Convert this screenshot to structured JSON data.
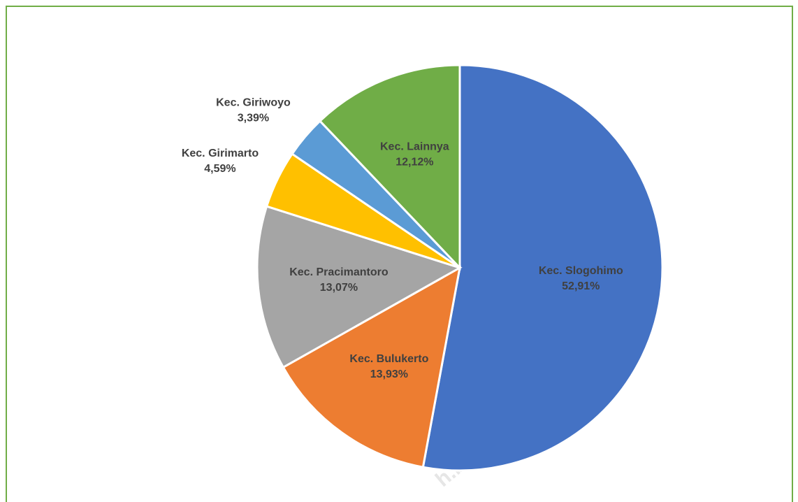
{
  "chart_data": {
    "type": "pie",
    "categories": [
      "Kec. Slogohimo",
      "Kec. Bulukerto",
      "Kec. Pracimantoro",
      "Kec. Girimarto",
      "Kec. Giriwoyo",
      "Kec. Lainnya"
    ],
    "values": [
      52.91,
      13.93,
      13.07,
      4.59,
      3.39,
      12.12
    ],
    "value_labels": [
      "52,91%",
      "13,93%",
      "13,07%",
      "4,59%",
      "3,39%",
      "12,12%"
    ],
    "colors": [
      "#4472c4",
      "#ed7d31",
      "#a5a5a5",
      "#ffc000",
      "#5b9bd5",
      "#70ad47"
    ],
    "watermark": "h.bps.go.id"
  }
}
